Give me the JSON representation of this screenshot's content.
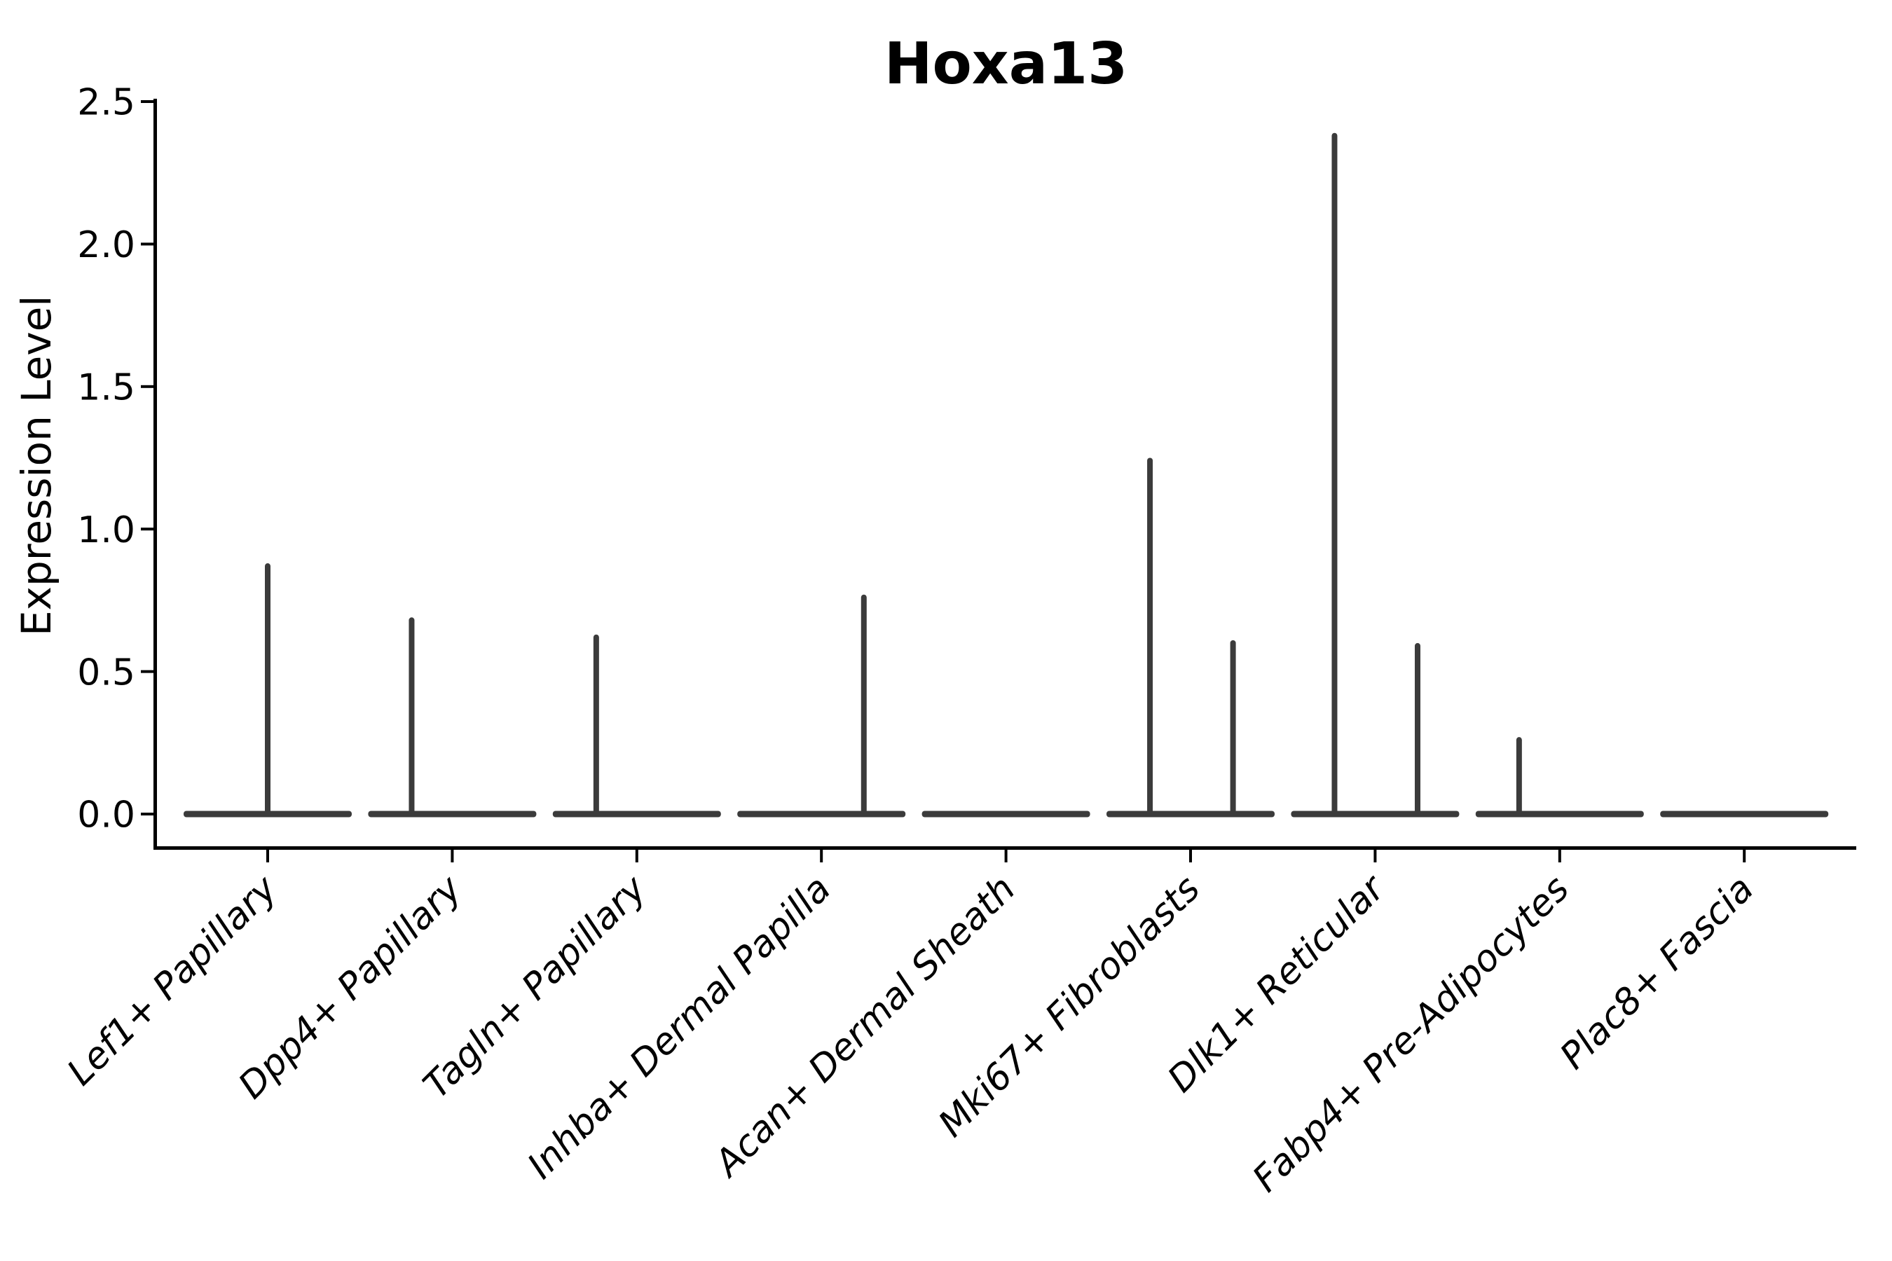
{
  "title": "Hoxa13",
  "colors": {
    "background": "#ffffff",
    "axis": "#000000",
    "text": "#000000",
    "violin": "#3b3b3b"
  },
  "chart_data": {
    "type": "violin",
    "title": "Hoxa13",
    "xlabel": "",
    "ylabel": "Expression Level",
    "categories": [
      "Lef1+ Papillary",
      "Dpp4+ Papillary",
      "Tagln+ Papillary",
      "Inhba+ Dermal Papilla",
      "Acan+ Dermal Sheath",
      "Mki67+ Fibroblasts",
      "Dlk1+ Reticular",
      "Fabp4+ Pre-Adipocytes",
      "Plac8+ Fascia"
    ],
    "yticks": [
      "0.0",
      "0.5",
      "1.0",
      "1.5",
      "2.0",
      "2.5"
    ],
    "ylim": [
      0,
      2.51
    ],
    "grid": false,
    "legend": false,
    "x_tick_label_rotation_deg": 45,
    "x_tick_label_style": "italic",
    "violins": [
      {
        "category": "Lef1+ Papillary",
        "baseline_value": 0,
        "spikes": [
          {
            "offset": 0,
            "value": 0.88
          }
        ]
      },
      {
        "category": "Dpp4+ Papillary",
        "baseline_value": 0,
        "spikes": [
          {
            "offset": -0.22,
            "value": 0.69
          }
        ]
      },
      {
        "category": "Tagln+ Papillary",
        "baseline_value": 0,
        "spikes": [
          {
            "offset": -0.22,
            "value": 0.63
          }
        ]
      },
      {
        "category": "Inhba+ Dermal Papilla",
        "baseline_value": 0,
        "spikes": [
          {
            "offset": 0.23,
            "value": 0.77
          }
        ]
      },
      {
        "category": "Acan+ Dermal Sheath",
        "baseline_value": 0,
        "spikes": []
      },
      {
        "category": "Mki67+ Fibroblasts",
        "baseline_value": 0,
        "spikes": [
          {
            "offset": -0.22,
            "value": 1.25
          },
          {
            "offset": 0.23,
            "value": 0.61
          }
        ]
      },
      {
        "category": "Dlk1+ Reticular",
        "baseline_value": 0,
        "spikes": [
          {
            "offset": -0.22,
            "value": 2.39
          },
          {
            "offset": 0.23,
            "value": 0.6
          }
        ]
      },
      {
        "category": "Fabp4+ Pre-Adipocytes",
        "baseline_value": 0,
        "spikes": [
          {
            "offset": -0.22,
            "value": 0.27
          }
        ]
      },
      {
        "category": "Plac8+ Fascia",
        "baseline_value": 0,
        "spikes": []
      }
    ]
  }
}
